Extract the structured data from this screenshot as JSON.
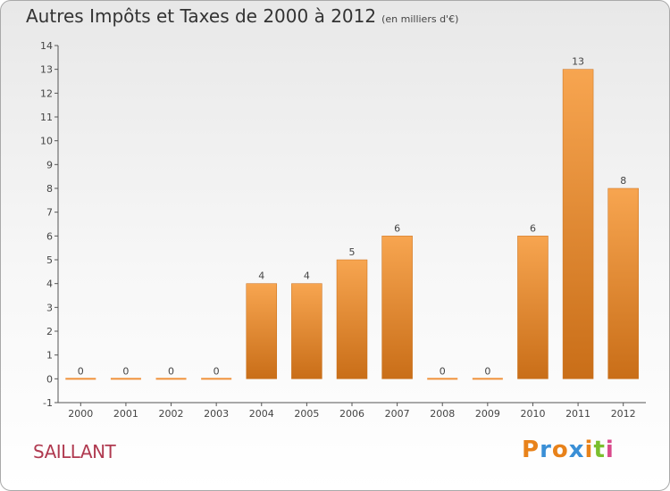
{
  "title": "Autres Impôts et Taxes de 2000 à 2012",
  "unit": "(en milliers d'€)",
  "city": "SAILLANT",
  "logo": {
    "letters": [
      "P",
      "r",
      "o",
      "x",
      "i",
      "t",
      "i"
    ],
    "colors": [
      "#e8821a",
      "#3a8fd6",
      "#e8821a",
      "#3a8fd6",
      "#e8821a",
      "#7bbf2e",
      "#d94a8c"
    ]
  },
  "colors": {
    "bar": "#f0913a",
    "bar_light": "#f7a550",
    "bar_dark": "#c96e18",
    "axis": "#555555",
    "grid": "#cccccc"
  },
  "chart_data": {
    "type": "bar",
    "title": "Autres Impôts et Taxes de 2000 à 2012",
    "xlabel": "",
    "ylabel": "",
    "categories": [
      "2000",
      "2001",
      "2002",
      "2003",
      "2004",
      "2005",
      "2006",
      "2007",
      "2008",
      "2009",
      "2010",
      "2011",
      "2012"
    ],
    "values": [
      0,
      0,
      0,
      0,
      4,
      4,
      5,
      6,
      0,
      0,
      6,
      13,
      8
    ],
    "data_labels": [
      "0",
      "0",
      "0",
      "0",
      "4",
      "4",
      "5",
      "6",
      "0",
      "0",
      "6",
      "13",
      "8"
    ],
    "y_ticks": [
      "-1",
      "0",
      "1",
      "2",
      "3",
      "4",
      "5",
      "6",
      "7",
      "8",
      "9",
      "10",
      "11",
      "12",
      "13",
      "14"
    ],
    "ylim": [
      -1,
      14
    ],
    "grid": false,
    "legend": "none"
  }
}
